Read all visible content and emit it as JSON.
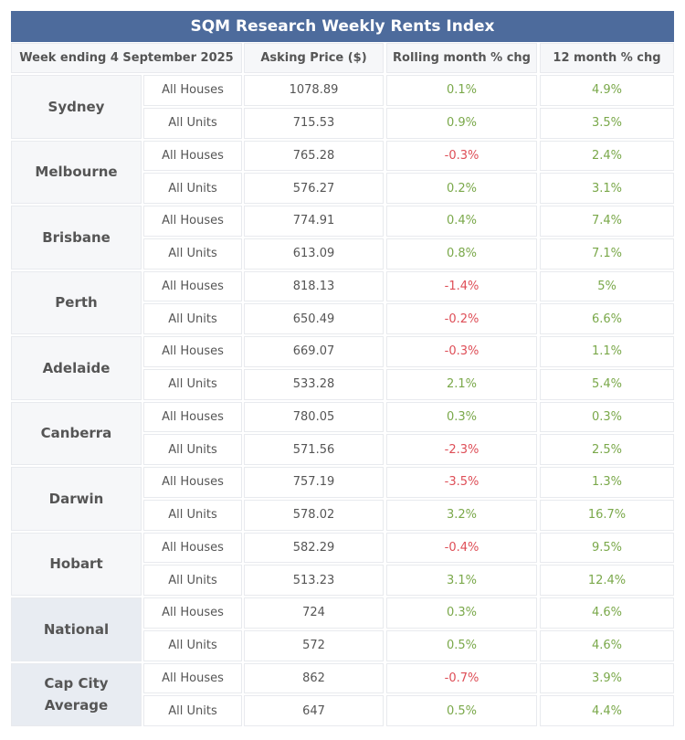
{
  "title": "SQM Research Weekly Rents Index",
  "header": [
    "Week ending 4 September 2025",
    "Asking Price ($)",
    "Rolling month % chg",
    "12 month % chg"
  ],
  "groups": [
    {
      "name": "Sydney",
      "rows": [
        [
          "All Houses",
          "1078.89",
          "0.1%",
          "4.9%"
        ],
        [
          "All Units",
          "715.53",
          "0.9%",
          "3.5%"
        ]
      ]
    },
    {
      "name": "Melbourne",
      "rows": [
        [
          "All Houses",
          "765.28",
          "-0.3%",
          "2.4%"
        ],
        [
          "All Units",
          "576.27",
          "0.2%",
          "3.1%"
        ]
      ]
    },
    {
      "name": "Brisbane",
      "rows": [
        [
          "All Houses",
          "774.91",
          "0.4%",
          "7.4%"
        ],
        [
          "All Units",
          "613.09",
          "0.8%",
          "7.1%"
        ]
      ]
    },
    {
      "name": "Perth",
      "rows": [
        [
          "All Houses",
          "818.13",
          "-1.4%",
          "5%"
        ],
        [
          "All Units",
          "650.49",
          "-0.2%",
          "6.6%"
        ]
      ]
    },
    {
      "name": "Adelaide",
      "rows": [
        [
          "All Houses",
          "669.07",
          "-0.3%",
          "1.1%"
        ],
        [
          "All Units",
          "533.28",
          "2.1%",
          "5.4%"
        ]
      ]
    },
    {
      "name": "Canberra",
      "rows": [
        [
          "All Houses",
          "780.05",
          "0.3%",
          "0.3%"
        ],
        [
          "All Units",
          "571.56",
          "-2.3%",
          "2.5%"
        ]
      ]
    },
    {
      "name": "Darwin",
      "rows": [
        [
          "All Houses",
          "757.19",
          "-3.5%",
          "1.3%"
        ],
        [
          "All Units",
          "578.02",
          "3.2%",
          "16.7%"
        ]
      ]
    },
    {
      "name": "Hobart",
      "rows": [
        [
          "All Houses",
          "582.29",
          "-0.4%",
          "9.5%"
        ],
        [
          "All Units",
          "513.23",
          "3.1%",
          "12.4%"
        ]
      ]
    },
    {
      "name": "National",
      "rows": [
        [
          "All Houses",
          "724",
          "0.3%",
          "4.6%"
        ],
        [
          "All Units",
          "572",
          "0.5%",
          "4.6%"
        ]
      ]
    },
    {
      "name": "Cap City Average",
      "rows": [
        [
          "All Houses",
          "862",
          "-0.7%",
          "3.9%"
        ],
        [
          "All Units",
          "647",
          "0.5%",
          "4.4%"
        ]
      ]
    }
  ]
}
